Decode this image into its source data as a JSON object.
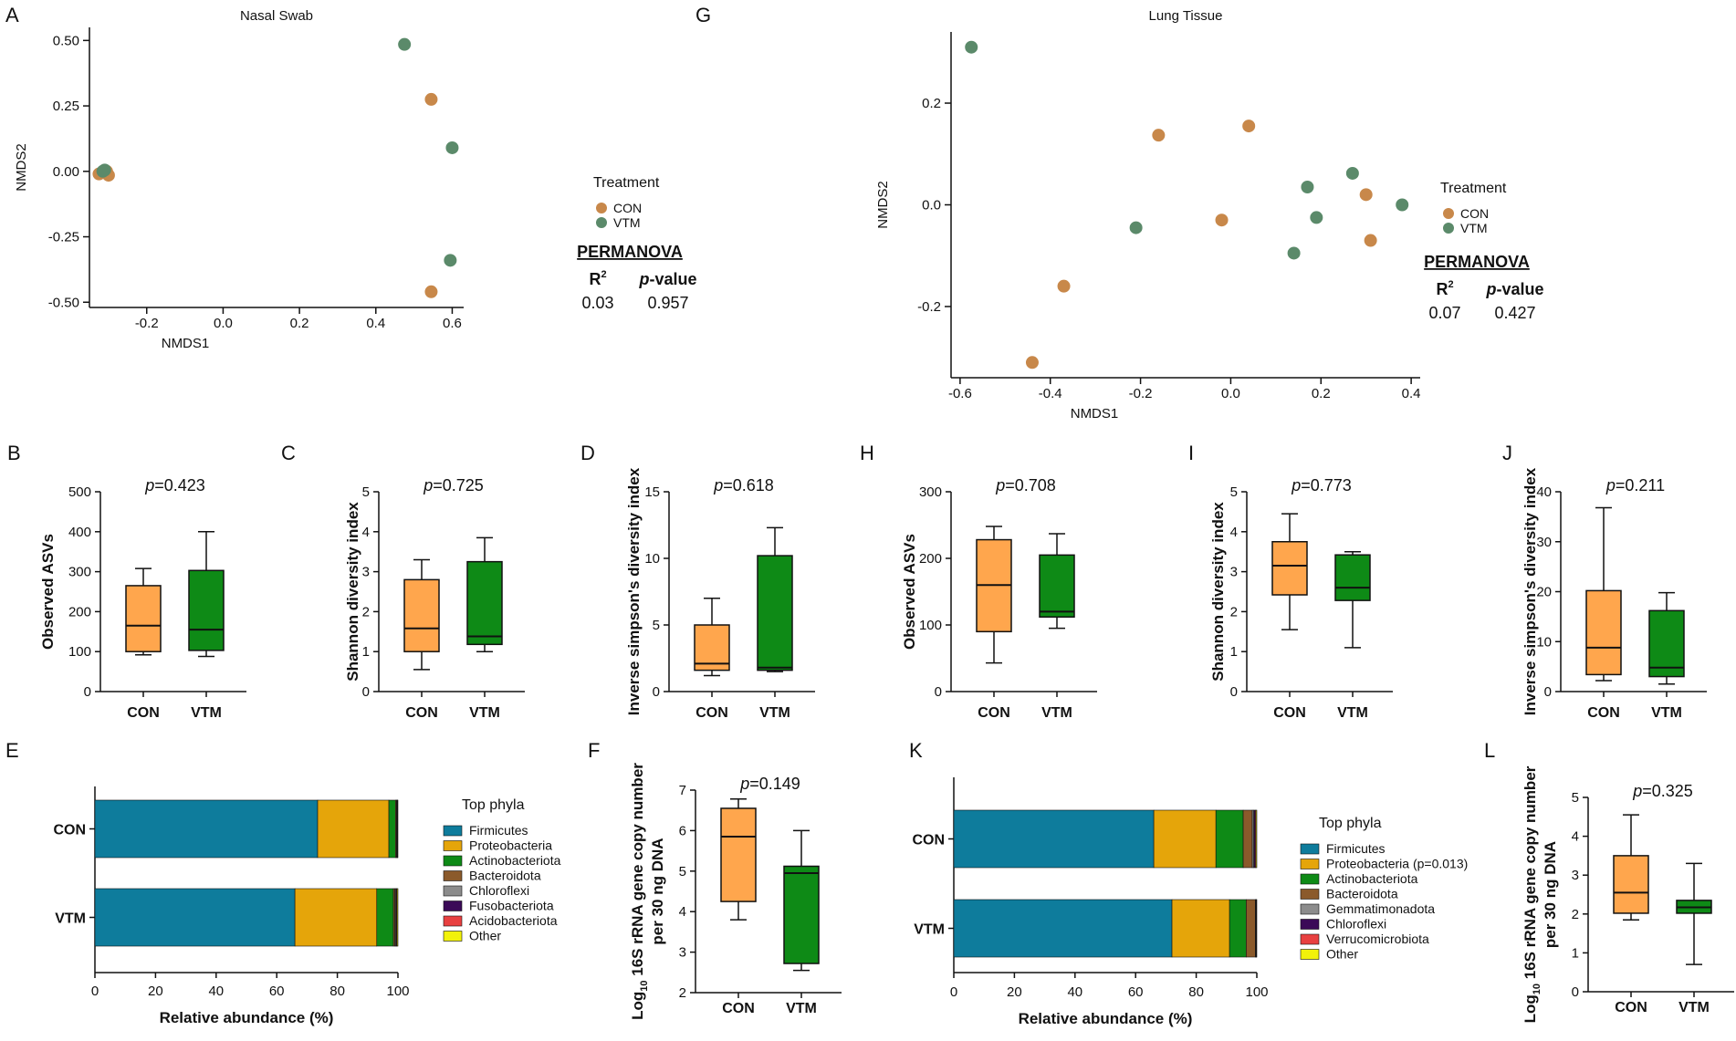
{
  "figure_title": "Microbiome composition and diversity, CON vs VTM",
  "colors": {
    "con_scatter": "#C8884A",
    "vtm_scatter": "#5B8A6A",
    "con_box": "#FF8C1A",
    "con_box_light": "#FFA64D",
    "vtm_box": "#0E8A16",
    "firmicutes": "#0E7C9C",
    "proteobacteria": "#E5A50A",
    "actinobacteriota": "#0E8A16",
    "bacteroidota": "#8B5A2B",
    "chloroflexi": "#8C8C8C",
    "fusobacteriota": "#3B0A57",
    "acidobacteriota": "#E84040",
    "other": "#F2F20A",
    "gemmatimonadota": "#8C8C8C",
    "verrucomicrobiota": "#E84040"
  },
  "chart_data": [
    {
      "id": "A",
      "type": "scatter",
      "title": "Nasal Swab",
      "xlabel": "NMDS1",
      "ylabel": "NMDS2",
      "xlim": [
        -0.35,
        0.63
      ],
      "ylim": [
        -0.52,
        0.55
      ],
      "xticks": [
        -0.2,
        0.0,
        0.2,
        0.4,
        0.6
      ],
      "xtick_labels": [
        "-0.2",
        "0.0",
        "0.2",
        "0.4",
        "0.6"
      ],
      "yticks": [
        -0.5,
        -0.25,
        0.0,
        0.25,
        0.5
      ],
      "ytick_labels": [
        "-0.50",
        "-0.25",
        "0.00",
        "0.25",
        "0.50"
      ],
      "legend_title": "Treatment",
      "series": [
        {
          "name": "CON",
          "points": [
            [
              -0.325,
              -0.01
            ],
            [
              -0.31,
              -0.005
            ],
            [
              -0.3,
              -0.015
            ],
            [
              -0.305,
              0.0
            ],
            [
              0.545,
              0.275
            ],
            [
              0.545,
              -0.46
            ]
          ]
        },
        {
          "name": "VTM",
          "points": [
            [
              -0.31,
              0.005
            ],
            [
              -0.315,
              0.0
            ],
            [
              0.475,
              0.485
            ],
            [
              0.6,
              0.09
            ],
            [
              0.595,
              -0.34
            ]
          ]
        }
      ],
      "permanova": {
        "title": "PERMANOVA",
        "r2_label": "R2",
        "r2_base": "R",
        "r2_sup": "2",
        "p_label": "p-value",
        "p_italic": "p",
        "p_rest": "-value",
        "r2": "0.03",
        "p": "0.957"
      }
    },
    {
      "id": "G",
      "type": "scatter",
      "title": "Lung Tissue",
      "xlabel": "NMDS1",
      "ylabel": "NMDS2",
      "xlim": [
        -0.62,
        0.42
      ],
      "ylim": [
        -0.34,
        0.34
      ],
      "xticks": [
        -0.6,
        -0.4,
        -0.2,
        0.0,
        0.2,
        0.4
      ],
      "xtick_labels": [
        "-0.6",
        "-0.4",
        "-0.2",
        "0.0",
        "0.2",
        "0.4"
      ],
      "yticks": [
        -0.2,
        0.0,
        0.2
      ],
      "ytick_labels": [
        "-0.2",
        "0.0",
        "0.2"
      ],
      "legend_title": "Treatment",
      "series": [
        {
          "name": "CON",
          "points": [
            [
              -0.16,
              0.137
            ],
            [
              0.04,
              0.155
            ],
            [
              -0.02,
              -0.03
            ],
            [
              0.3,
              0.02
            ],
            [
              0.31,
              -0.07
            ],
            [
              -0.37,
              -0.16
            ],
            [
              -0.44,
              -0.31
            ]
          ]
        },
        {
          "name": "VTM",
          "points": [
            [
              -0.575,
              0.31
            ],
            [
              -0.21,
              -0.045
            ],
            [
              0.17,
              0.035
            ],
            [
              0.27,
              0.062
            ],
            [
              0.19,
              -0.025
            ],
            [
              0.14,
              -0.095
            ],
            [
              0.38,
              0.0
            ]
          ]
        }
      ],
      "permanova": {
        "title": "PERMANOVA",
        "r2_label": "R2",
        "r2_base": "R",
        "r2_sup": "2",
        "p_label": "p-value",
        "p_italic": "p",
        "p_rest": "-value",
        "r2": "0.07",
        "p": "0.427"
      }
    },
    {
      "id": "B",
      "type": "box",
      "ylabel": "Observed ASVs",
      "ylim": [
        0,
        500
      ],
      "yticks": [
        0,
        100,
        200,
        300,
        400,
        500
      ],
      "categories": [
        "CON",
        "VTM"
      ],
      "p_text": "p=0.423",
      "p_italic": "p",
      "p_rest": "=0.423",
      "boxes": [
        {
          "name": "CON",
          "min": 92,
          "q1": 100,
          "median": 165,
          "q3": 265,
          "max": 308
        },
        {
          "name": "VTM",
          "min": 88,
          "q1": 103,
          "median": 155,
          "q3": 303,
          "max": 400
        }
      ]
    },
    {
      "id": "C",
      "type": "box",
      "ylabel": "Shannon diversity index",
      "ylim": [
        0,
        5
      ],
      "yticks": [
        0,
        1,
        2,
        3,
        4,
        5
      ],
      "categories": [
        "CON",
        "VTM"
      ],
      "p_text": "p=0.725",
      "p_italic": "p",
      "p_rest": "=0.725",
      "boxes": [
        {
          "name": "CON",
          "min": 0.55,
          "q1": 1.0,
          "median": 1.58,
          "q3": 2.8,
          "max": 3.3
        },
        {
          "name": "VTM",
          "min": 1.0,
          "q1": 1.18,
          "median": 1.38,
          "q3": 3.25,
          "max": 3.85
        }
      ]
    },
    {
      "id": "D",
      "type": "box",
      "ylabel": "Inverse simpson's diversity index",
      "ylim": [
        0,
        15
      ],
      "yticks": [
        0,
        5,
        10,
        15
      ],
      "categories": [
        "CON",
        "VTM"
      ],
      "p_text": "p=0.618",
      "p_italic": "p",
      "p_rest": "=0.618",
      "boxes": [
        {
          "name": "CON",
          "min": 1.2,
          "q1": 1.6,
          "median": 2.1,
          "q3": 5.0,
          "max": 7.0
        },
        {
          "name": "VTM",
          "min": 1.5,
          "q1": 1.6,
          "median": 1.8,
          "q3": 10.2,
          "max": 12.3
        }
      ]
    },
    {
      "id": "H",
      "type": "box",
      "ylabel": "Observed ASVs",
      "ylim": [
        0,
        300
      ],
      "yticks": [
        0,
        100,
        200,
        300
      ],
      "categories": [
        "CON",
        "VTM"
      ],
      "p_text": "p=0.708",
      "p_italic": "p",
      "p_rest": "=0.708",
      "boxes": [
        {
          "name": "CON",
          "min": 43,
          "q1": 90,
          "median": 160,
          "q3": 228,
          "max": 248
        },
        {
          "name": "VTM",
          "min": 95,
          "q1": 112,
          "median": 120,
          "q3": 205,
          "max": 237
        }
      ]
    },
    {
      "id": "I",
      "type": "box",
      "ylabel": "Shannon diversity index",
      "ylim": [
        0,
        5
      ],
      "yticks": [
        0,
        1,
        2,
        3,
        4,
        5
      ],
      "categories": [
        "CON",
        "VTM"
      ],
      "p_text": "p=0.773",
      "p_italic": "p",
      "p_rest": "=0.773",
      "boxes": [
        {
          "name": "CON",
          "min": 1.55,
          "q1": 2.42,
          "median": 3.15,
          "q3": 3.75,
          "max": 4.45
        },
        {
          "name": "VTM",
          "min": 1.1,
          "q1": 2.28,
          "median": 2.6,
          "q3": 3.42,
          "max": 3.5
        }
      ]
    },
    {
      "id": "J",
      "type": "box",
      "ylabel": "Inverse simpson's diversity index",
      "ylim": [
        0,
        40
      ],
      "yticks": [
        0,
        10,
        20,
        30,
        40
      ],
      "categories": [
        "CON",
        "VTM"
      ],
      "p_text": "p=0.211",
      "p_italic": "p",
      "p_rest": "=0.211",
      "boxes": [
        {
          "name": "CON",
          "min": 2.2,
          "q1": 3.4,
          "median": 8.8,
          "q3": 20.2,
          "max": 36.8
        },
        {
          "name": "VTM",
          "min": 1.5,
          "q1": 3.0,
          "median": 4.8,
          "q3": 16.2,
          "max": 19.8
        }
      ]
    },
    {
      "id": "F",
      "type": "box",
      "ylabel_l1": "Log10 16S rRNA gene copy number",
      "ylabel_l1a": "Log",
      "ylabel_l1sub": "10",
      "ylabel_l1b": " 16S rRNA gene copy number",
      "ylabel_l2": "per 30 ng DNA",
      "ylim": [
        2,
        7
      ],
      "yticks": [
        2,
        3,
        4,
        5,
        6,
        7
      ],
      "categories": [
        "CON",
        "VTM"
      ],
      "p_text": "p=0.149",
      "p_italic": "p",
      "p_rest": "=0.149",
      "boxes": [
        {
          "name": "CON",
          "min": 3.8,
          "q1": 4.25,
          "median": 5.85,
          "q3": 6.55,
          "max": 6.78
        },
        {
          "name": "VTM",
          "min": 2.55,
          "q1": 2.72,
          "median": 4.95,
          "q3": 5.12,
          "max": 6.0
        }
      ]
    },
    {
      "id": "L",
      "type": "box",
      "ylabel_l1": "Log10 16S rRNA gene copy number",
      "ylabel_l1a": "Log",
      "ylabel_l1sub": "10",
      "ylabel_l1b": " 16S rRNA gene copy number",
      "ylabel_l2": "per 30 ng DNA",
      "ylim": [
        0,
        5
      ],
      "yticks": [
        0,
        1,
        2,
        3,
        4,
        5
      ],
      "categories": [
        "CON",
        "VTM"
      ],
      "p_text": "p=0.325",
      "p_italic": "p",
      "p_rest": "=0.325",
      "boxes": [
        {
          "name": "CON",
          "min": 1.85,
          "q1": 2.02,
          "median": 2.55,
          "q3": 3.5,
          "max": 4.55
        },
        {
          "name": "VTM",
          "min": 0.7,
          "q1": 2.02,
          "median": 2.17,
          "q3": 2.35,
          "max": 3.3
        }
      ]
    },
    {
      "id": "E",
      "type": "bar",
      "orientation": "horizontal",
      "stacked": true,
      "xlabel": "Relative abundance (%)",
      "xlim": [
        0,
        100
      ],
      "xticks": [
        0,
        20,
        40,
        60,
        80,
        100
      ],
      "categories": [
        "CON",
        "VTM"
      ],
      "legend_title": "Top phyla",
      "series": [
        {
          "name": "Firmicutes",
          "color_key": "firmicutes",
          "values": [
            73.5,
            66
          ]
        },
        {
          "name": "Proteobacteria",
          "color_key": "proteobacteria",
          "values": [
            23.5,
            27
          ]
        },
        {
          "name": "Actinobacteriota",
          "color_key": "actinobacteriota",
          "values": [
            2.2,
            5.5
          ]
        },
        {
          "name": "Bacteroidota",
          "color_key": "bacteroidota",
          "values": [
            0.3,
            0.5
          ]
        },
        {
          "name": "Chloroflexi",
          "color_key": "chloroflexi",
          "values": [
            0.2,
            0.3
          ]
        },
        {
          "name": "Fusobacteriota",
          "color_key": "fusobacteriota",
          "values": [
            0.1,
            0.2
          ]
        },
        {
          "name": "Acidobacteriota",
          "color_key": "acidobacteriota",
          "values": [
            0.1,
            0.2
          ]
        },
        {
          "name": "Other",
          "color_key": "other",
          "values": [
            0.1,
            0.3
          ]
        }
      ]
    },
    {
      "id": "K",
      "type": "bar",
      "orientation": "horizontal",
      "stacked": true,
      "xlabel": "Relative abundance (%)",
      "xlim": [
        0,
        100
      ],
      "xticks": [
        0,
        20,
        40,
        60,
        80,
        100
      ],
      "categories": [
        "CON",
        "VTM"
      ],
      "legend_title": "Top phyla",
      "series": [
        {
          "name": "Firmicutes",
          "color_key": "firmicutes",
          "values": [
            66,
            72
          ]
        },
        {
          "name": "Proteobacteria (p=0.013)",
          "color_key": "proteobacteria",
          "values": [
            20.5,
            19
          ]
        },
        {
          "name": "Actinobacteriota",
          "color_key": "actinobacteriota",
          "values": [
            9,
            5.5
          ]
        },
        {
          "name": "Bacteroidota",
          "color_key": "bacteroidota",
          "values": [
            3,
            3
          ]
        },
        {
          "name": "Gemmatimonadota",
          "color_key": "gemmatimonadota",
          "values": [
            0.5,
            0.2
          ]
        },
        {
          "name": "Chloroflexi",
          "color_key": "fusobacteriota",
          "values": [
            0.4,
            0.1
          ]
        },
        {
          "name": "Verrucomicrobiota",
          "color_key": "verrucomicrobiota",
          "values": [
            0.3,
            0.1
          ]
        },
        {
          "name": "Other",
          "color_key": "other",
          "values": [
            0.3,
            0.1
          ]
        }
      ]
    }
  ]
}
